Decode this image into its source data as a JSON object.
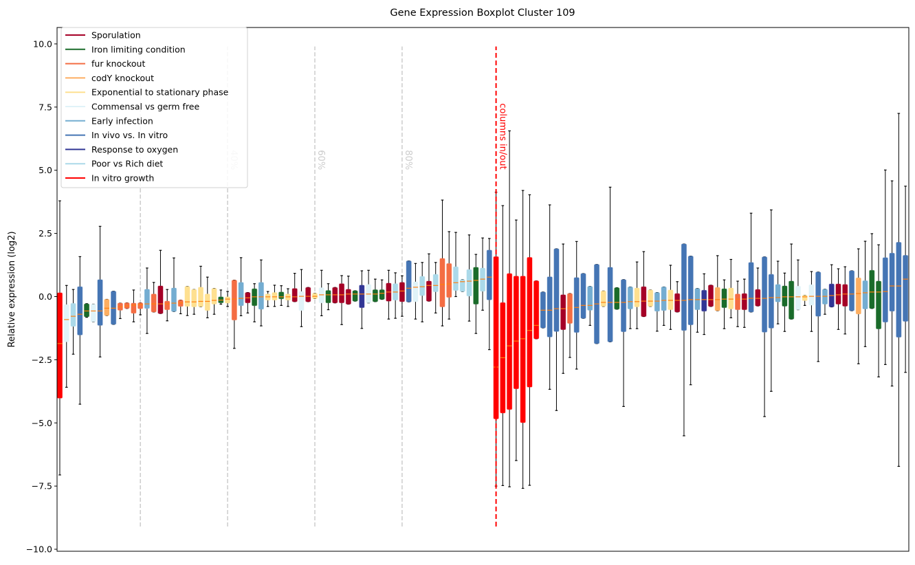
{
  "chart_data": {
    "type": "boxplot",
    "title": "Gene Expression Boxplot Cluster 109",
    "xlabel": "",
    "ylabel": "Relative expression (log2)",
    "xlim": [
      0.59,
      127.5
    ],
    "ylim": [
      -10.08,
      10.65
    ],
    "yticks": [
      10.0,
      7.5,
      5.0,
      2.5,
      0.0,
      -2.5,
      -5.0,
      -7.5,
      -10.0
    ],
    "ytick_labels": [
      "10.0",
      "7.5",
      "5.0",
      "2.5",
      "0.0",
      "−2.5",
      "−5.0",
      "−7.5",
      "−10.0"
    ],
    "grid": false,
    "legend_position": "top-left",
    "median_color": "#ff7f0e",
    "groups": [
      {
        "name": "Sporulation",
        "color": "#a50026"
      },
      {
        "name": "Iron limiting condition",
        "color": "#1a6b2a"
      },
      {
        "name": "fur knockout",
        "color": "#f46d43"
      },
      {
        "name": "codY knockout",
        "color": "#fdae61"
      },
      {
        "name": "Exponential to stationary phase",
        "color": "#fee090"
      },
      {
        "name": "Commensal vs germ free",
        "color": "#e0f3f8"
      },
      {
        "name": "Early infection",
        "color": "#74add1"
      },
      {
        "name": "In vivo vs. In vitro",
        "color": "#4575b4"
      },
      {
        "name": "Response to oxygen",
        "color": "#313695"
      },
      {
        "name": "Poor vs Rich diet",
        "color": "#abd9e9"
      },
      {
        "name": "In vitro growth",
        "color": "#ff0000"
      }
    ],
    "box_fields": [
      "group",
      "whisker_low",
      "q1",
      "median",
      "q3",
      "whisker_high"
    ],
    "boxes": [
      [
        10,
        -7.06,
        -4.02,
        -1.86,
        0.15,
        3.79
      ],
      [
        5,
        -3.59,
        -1.79,
        -0.91,
        -0.32,
        0.44
      ],
      [
        9,
        -2.28,
        -1.18,
        -0.78,
        -0.27,
        0.28
      ],
      [
        7,
        -4.26,
        -1.52,
        -0.7,
        0.39,
        1.58
      ],
      [
        1,
        -0.82,
        -0.8,
        -0.57,
        -0.29,
        -0.28
      ],
      [
        5,
        -1.0,
        -1.0,
        -0.57,
        -0.3,
        -0.3
      ],
      [
        7,
        -2.39,
        -1.14,
        -0.57,
        0.67,
        2.78
      ],
      [
        3,
        -0.75,
        -0.75,
        -0.46,
        -0.11,
        -0.11
      ],
      [
        7,
        -1.1,
        -1.1,
        -0.46,
        0.21,
        0.21
      ],
      [
        2,
        -0.87,
        -0.54,
        -0.41,
        -0.26,
        -0.26
      ],
      [
        2,
        -0.47,
        -0.47,
        -0.37,
        -0.25,
        -0.25
      ],
      [
        2,
        -1.0,
        -0.66,
        -0.34,
        -0.26,
        0.26
      ],
      [
        2,
        -0.72,
        -0.48,
        -0.32,
        -0.25,
        -0.25
      ],
      [
        6,
        -1.46,
        -0.47,
        -0.29,
        0.29,
        1.13
      ],
      [
        2,
        -0.61,
        -0.61,
        -0.29,
        0.1,
        0.56
      ],
      [
        0,
        -0.67,
        -0.67,
        -0.29,
        0.42,
        1.83
      ],
      [
        2,
        -0.96,
        -0.52,
        -0.29,
        -0.18,
        0.28
      ],
      [
        6,
        -0.59,
        -0.59,
        -0.26,
        0.34,
        1.53
      ],
      [
        2,
        -0.68,
        -0.39,
        -0.25,
        -0.14,
        -0.14
      ],
      [
        4,
        -0.75,
        -0.39,
        -0.21,
        0.4,
        0.4
      ],
      [
        4,
        -0.7,
        -0.41,
        -0.21,
        0.28,
        0.28
      ],
      [
        4,
        -0.4,
        -0.4,
        -0.19,
        0.37,
        1.2
      ],
      [
        4,
        -0.84,
        -0.55,
        -0.19,
        0.1,
        0.77
      ],
      [
        4,
        -0.7,
        -0.3,
        -0.15,
        0.32,
        0.32
      ],
      [
        1,
        -0.3,
        -0.25,
        -0.14,
        -0.01,
        0.26
      ],
      [
        4,
        -0.39,
        -0.26,
        -0.1,
        -0.01,
        0.2
      ],
      [
        2,
        -2.05,
        -0.93,
        -0.1,
        0.65,
        0.65
      ],
      [
        6,
        -0.76,
        -0.36,
        -0.07,
        0.56,
        1.54
      ],
      [
        0,
        -0.65,
        -0.25,
        -0.05,
        0.16,
        0.16
      ],
      [
        1,
        -1.0,
        -0.36,
        -0.01,
        0.31,
        0.51
      ],
      [
        6,
        -1.16,
        -0.5,
        -0.01,
        0.56,
        1.45
      ],
      [
        4,
        -0.39,
        -0.14,
        -0.01,
        0.1,
        0.2
      ],
      [
        4,
        -0.39,
        -0.14,
        -0.01,
        0.16,
        0.45
      ],
      [
        1,
        -0.35,
        -0.09,
        -0.01,
        0.18,
        0.43
      ],
      [
        4,
        -0.39,
        -0.14,
        -0.01,
        0.1,
        0.31
      ],
      [
        0,
        -0.2,
        -0.2,
        -0.01,
        0.32,
        0.92
      ],
      [
        5,
        -1.19,
        -0.55,
        0.01,
        0.2,
        1.07
      ],
      [
        0,
        -0.2,
        -0.2,
        0.01,
        0.36,
        0.36
      ],
      [
        4,
        -0.08,
        -0.08,
        0.01,
        0.13,
        0.13
      ],
      [
        5,
        -0.76,
        -0.25,
        0.07,
        0.35,
        1.04
      ],
      [
        1,
        -0.52,
        -0.25,
        0.07,
        0.24,
        0.51
      ],
      [
        0,
        -0.25,
        -0.25,
        0.07,
        0.36,
        0.36
      ],
      [
        0,
        -1.11,
        -0.25,
        0.07,
        0.51,
        0.83
      ],
      [
        0,
        -0.3,
        -0.3,
        0.1,
        0.29,
        0.81
      ],
      [
        1,
        -0.18,
        -0.18,
        0.1,
        0.23,
        0.23
      ],
      [
        8,
        -1.26,
        -0.44,
        0.1,
        0.45,
        1.02
      ],
      [
        5,
        -0.25,
        -0.25,
        0.1,
        0.48,
        1.04
      ],
      [
        1,
        -0.2,
        -0.2,
        0.1,
        0.27,
        0.69
      ],
      [
        1,
        -0.11,
        -0.11,
        0.13,
        0.27,
        0.66
      ],
      [
        0,
        -0.89,
        -0.18,
        0.18,
        0.53,
        1.04
      ],
      [
        9,
        -0.86,
        -0.14,
        0.18,
        0.51,
        0.94
      ],
      [
        0,
        -0.78,
        -0.2,
        0.22,
        0.56,
        0.82
      ],
      [
        7,
        -0.21,
        -0.21,
        0.33,
        1.41,
        1.41
      ],
      [
        5,
        -0.89,
        -0.2,
        0.37,
        0.58,
        1.31
      ],
      [
        9,
        -1.0,
        0.04,
        0.39,
        0.8,
        1.35
      ],
      [
        0,
        -0.18,
        -0.18,
        0.44,
        0.61,
        1.69
      ],
      [
        9,
        -0.65,
        0.19,
        0.44,
        0.88,
        1.35
      ],
      [
        2,
        -1.16,
        -0.41,
        0.48,
        1.51,
        3.82
      ],
      [
        2,
        -0.89,
        -0.03,
        0.5,
        1.31,
        2.57
      ],
      [
        9,
        0.0,
        0.24,
        0.55,
        1.18,
        2.54
      ],
      [
        9,
        0.2,
        0.2,
        0.59,
        0.67,
        0.67
      ],
      [
        9,
        -0.97,
        0.02,
        0.61,
        1.07,
        2.44
      ],
      [
        1,
        -1.46,
        -0.3,
        0.64,
        1.16,
        1.67
      ],
      [
        9,
        -0.54,
        0.21,
        0.69,
        1.13,
        2.32
      ],
      [
        7,
        -2.1,
        -0.13,
        0.77,
        1.84,
        2.3
      ],
      [
        10,
        -7.5,
        -4.84,
        -2.79,
        1.58,
        4.13
      ],
      [
        10,
        -7.48,
        -4.61,
        -2.42,
        -0.24,
        3.6
      ],
      [
        10,
        -7.53,
        -4.47,
        -1.95,
        0.91,
        6.56
      ],
      [
        10,
        -6.49,
        -3.65,
        -1.76,
        0.81,
        3.03
      ],
      [
        10,
        -7.59,
        -4.99,
        -1.67,
        0.81,
        4.2
      ],
      [
        10,
        -7.47,
        -3.58,
        -1.34,
        1.55,
        4.03
      ],
      [
        10,
        -1.67,
        -1.67,
        -1.14,
        0.62,
        0.62
      ],
      [
        7,
        -1.24,
        -1.24,
        -0.54,
        0.18,
        0.18
      ],
      [
        7,
        -3.67,
        -1.6,
        -0.54,
        0.78,
        3.63
      ],
      [
        7,
        -4.51,
        -1.38,
        -0.48,
        1.89,
        1.89
      ],
      [
        0,
        -3.04,
        -1.31,
        -0.48,
        0.07,
        2.08
      ],
      [
        2,
        -2.41,
        -1.06,
        -0.45,
        0.12,
        0.12
      ],
      [
        7,
        -2.87,
        -1.42,
        -0.43,
        0.75,
        2.18
      ],
      [
        7,
        -0.86,
        -0.86,
        -0.35,
        0.91,
        0.91
      ],
      [
        6,
        -1.14,
        -0.54,
        -0.35,
        0.4,
        0.4
      ],
      [
        7,
        -1.86,
        -1.86,
        -0.29,
        1.27,
        1.27
      ],
      [
        4,
        -0.39,
        -0.39,
        -0.23,
        0.22,
        0.22
      ],
      [
        7,
        -1.79,
        -1.79,
        -0.23,
        1.16,
        4.33
      ],
      [
        1,
        -0.5,
        -0.5,
        -0.23,
        0.35,
        0.35
      ],
      [
        7,
        -4.35,
        -1.39,
        -0.23,
        0.67,
        0.67
      ],
      [
        6,
        -1.27,
        -0.49,
        -0.2,
        0.38,
        0.38
      ],
      [
        4,
        -1.27,
        -0.41,
        -0.2,
        0.34,
        1.37
      ],
      [
        0,
        -0.79,
        -0.79,
        -0.18,
        0.39,
        1.78
      ],
      [
        4,
        -0.39,
        -0.39,
        -0.18,
        0.26,
        0.26
      ],
      [
        6,
        -1.37,
        -0.58,
        -0.18,
        0.16,
        0.16
      ],
      [
        6,
        -1.14,
        -0.55,
        -0.15,
        0.38,
        0.38
      ],
      [
        4,
        -1.3,
        -0.52,
        -0.15,
        0.26,
        1.24
      ],
      [
        0,
        -0.61,
        -0.61,
        -0.15,
        0.12,
        0.59
      ],
      [
        7,
        -5.51,
        -1.34,
        -0.15,
        2.08,
        2.08
      ],
      [
        7,
        -3.49,
        -1.12,
        -0.12,
        1.6,
        1.6
      ],
      [
        6,
        -1.41,
        -0.52,
        -0.12,
        0.32,
        0.32
      ],
      [
        8,
        -1.5,
        -0.58,
        -0.12,
        0.25,
        0.9
      ],
      [
        0,
        -0.39,
        -0.39,
        -0.12,
        0.45,
        0.45
      ],
      [
        3,
        -0.56,
        -0.56,
        -0.12,
        0.36,
        1.62
      ],
      [
        1,
        -1.27,
        -0.44,
        -0.1,
        0.31,
        0.66
      ],
      [
        4,
        -0.84,
        -0.49,
        -0.1,
        0.34,
        1.47
      ],
      [
        2,
        -1.19,
        -0.52,
        -0.1,
        0.1,
        0.61
      ],
      [
        0,
        -1.22,
        -0.52,
        -0.1,
        0.12,
        0.69
      ],
      [
        7,
        -0.61,
        -0.61,
        -0.07,
        1.35,
        3.3
      ],
      [
        0,
        -0.37,
        -0.37,
        -0.07,
        0.28,
        1.13
      ],
      [
        7,
        -4.75,
        -1.41,
        -0.07,
        1.57,
        1.57
      ],
      [
        7,
        -3.75,
        -1.25,
        -0.04,
        0.88,
        3.43
      ],
      [
        6,
        -1.08,
        -0.21,
        -0.04,
        0.48,
        1.4
      ],
      [
        1,
        -1.38,
        -0.38,
        -0.01,
        0.42,
        0.93
      ],
      [
        1,
        -0.89,
        -0.89,
        -0.01,
        0.61,
        2.08
      ],
      [
        5,
        -0.52,
        -0.52,
        -0.01,
        0.41,
        1.45
      ],
      [
        4,
        -0.35,
        -0.16,
        -0.01,
        0.05,
        0.05
      ],
      [
        5,
        -1.38,
        -0.34,
        0.01,
        0.47,
        0.99
      ],
      [
        7,
        -2.57,
        -0.78,
        0.01,
        0.97,
        0.97
      ],
      [
        6,
        -0.7,
        -0.3,
        0.01,
        0.29,
        0.29
      ],
      [
        8,
        -0.41,
        -0.41,
        0.04,
        0.5,
        1.26
      ],
      [
        0,
        -1.3,
        -0.3,
        0.07,
        0.5,
        1.1
      ],
      [
        0,
        -1.48,
        -0.38,
        0.1,
        0.48,
        1.18
      ],
      [
        7,
        -0.56,
        -0.56,
        0.1,
        1.02,
        1.02
      ],
      [
        3,
        -2.66,
        -0.69,
        0.12,
        0.74,
        1.89
      ],
      [
        6,
        -1.98,
        -0.49,
        0.15,
        0.63,
        2.19
      ],
      [
        1,
        -0.47,
        -0.47,
        0.18,
        1.04,
        2.49
      ],
      [
        1,
        -3.18,
        -1.28,
        0.18,
        0.61,
        2.05
      ],
      [
        7,
        -2.69,
        -1.01,
        0.2,
        1.54,
        5.01
      ],
      [
        7,
        -3.54,
        -0.58,
        0.42,
        1.72,
        4.58
      ],
      [
        7,
        -6.72,
        -1.61,
        0.42,
        2.15,
        7.25
      ],
      [
        7,
        -3.0,
        -0.98,
        0.69,
        1.63,
        4.37
      ]
    ],
    "percentile_lines": {
      "color": "#cccccc",
      "range": [
        -9.1,
        9.9
      ],
      "lines": [
        {
          "x": 13,
          "label": ""
        },
        {
          "x": 26,
          "label": "40%"
        },
        {
          "x": 39,
          "label": "60%"
        },
        {
          "x": 52,
          "label": "80%"
        }
      ]
    },
    "cutoff_line": {
      "x": 66,
      "label": "columns in/out",
      "color": "#ff0000",
      "range": [
        -9.1,
        9.9
      ]
    }
  }
}
